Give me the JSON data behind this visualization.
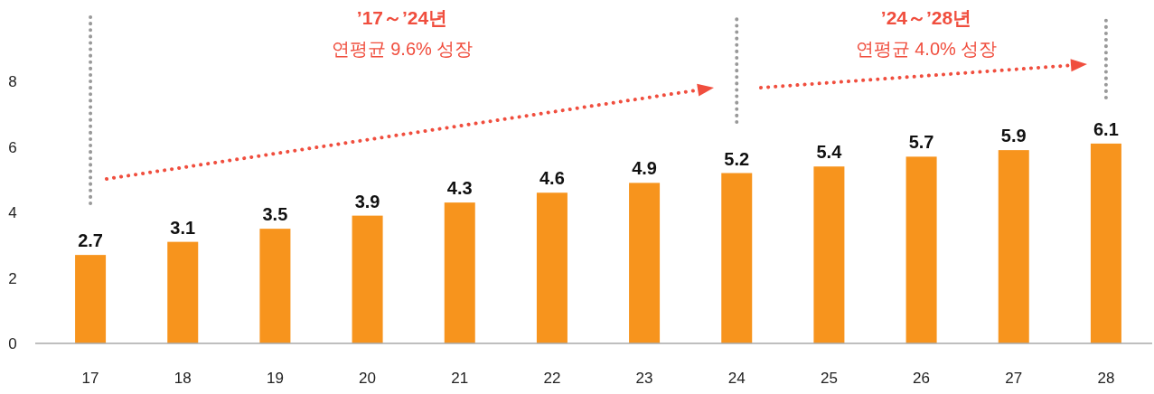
{
  "chart_data": {
    "type": "bar",
    "categories": [
      "17",
      "18",
      "19",
      "20",
      "21",
      "22",
      "23",
      "24",
      "25",
      "26",
      "27",
      "28"
    ],
    "values": [
      2.7,
      3.1,
      3.5,
      3.9,
      4.3,
      4.6,
      4.9,
      5.2,
      5.4,
      5.7,
      5.9,
      6.1
    ],
    "color": "#f7941d",
    "data_labels": true,
    "ylim": [
      0,
      8
    ],
    "yticks": [
      0,
      2,
      4,
      6,
      8
    ],
    "annotations": [
      "’17～’24년",
      "연평균 9.6% 성장",
      "’24～’28년",
      "연평균 4.0% 성장"
    ]
  }
}
